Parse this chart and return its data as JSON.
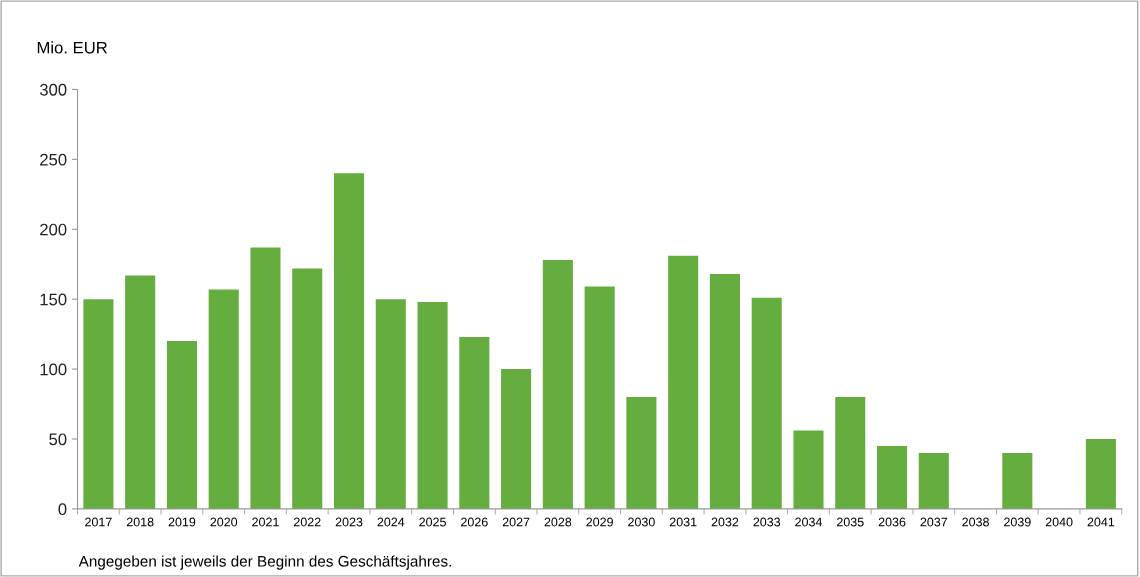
{
  "chart_data": {
    "type": "bar",
    "ylabel": "Mio. EUR",
    "categories": [
      "2017",
      "2018",
      "2019",
      "2020",
      "2021",
      "2022",
      "2023",
      "2024",
      "2025",
      "2026",
      "2027",
      "2028",
      "2029",
      "2030",
      "2031",
      "2032",
      "2033",
      "2034",
      "2035",
      "2036",
      "2037",
      "2038",
      "2039",
      "2040",
      "2041"
    ],
    "values": [
      150,
      167,
      120,
      157,
      187,
      172,
      240,
      150,
      148,
      123,
      100,
      178,
      159,
      80,
      181,
      168,
      151,
      56,
      80,
      45,
      40,
      0,
      40,
      0,
      50
    ],
    "color": "#66ad40",
    "ylim": [
      0,
      300
    ],
    "yticks": [
      0,
      50,
      100,
      150,
      200,
      250,
      300
    ],
    "grid": false,
    "annotations": [
      "Angegeben ist jeweils der Beginn des Geschäftsjahres."
    ]
  }
}
